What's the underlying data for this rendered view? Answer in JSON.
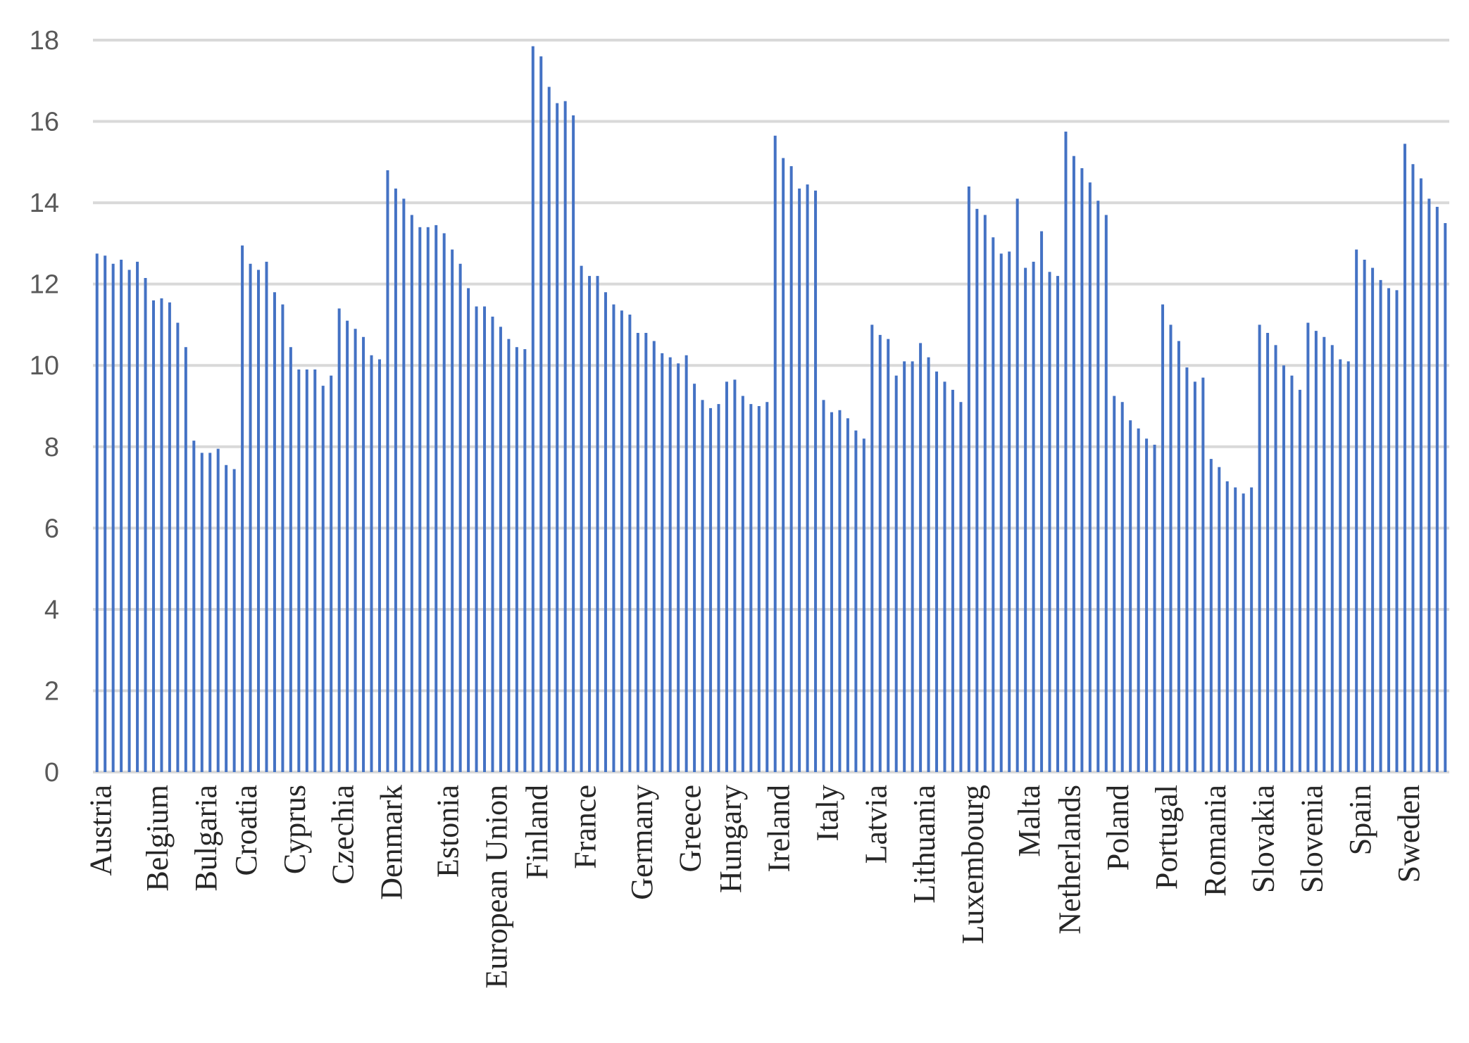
{
  "chart_data": {
    "type": "bar",
    "title": "",
    "xlabel": "",
    "ylabel": "",
    "ylim": [
      0,
      18
    ],
    "y_ticks": [
      0,
      2,
      4,
      6,
      8,
      10,
      12,
      14,
      16,
      18
    ],
    "grid": true,
    "legend": "none",
    "bar_color": "#4472c4",
    "grid_color": "#d9d9d9",
    "groups": [
      {
        "name": "Austria",
        "values": [
          12.75,
          12.7,
          12.5,
          12.6,
          12.35,
          12.55,
          12.15
        ]
      },
      {
        "name": "Belgium",
        "values": [
          11.6,
          11.65,
          11.55,
          11.05,
          10.45,
          8.15
        ]
      },
      {
        "name": "Bulgaria",
        "values": [
          7.85,
          7.85,
          7.95,
          7.55,
          7.45
        ]
      },
      {
        "name": "Croatia",
        "values": [
          12.95,
          12.5,
          12.35,
          12.55,
          11.8,
          11.5
        ]
      },
      {
        "name": "Cyprus",
        "values": [
          10.45,
          9.9,
          9.9,
          9.9,
          9.5,
          9.75
        ]
      },
      {
        "name": "Czechia",
        "values": [
          11.4,
          11.1,
          10.9,
          10.7,
          10.25,
          10.15
        ]
      },
      {
        "name": "Denmark",
        "values": [
          14.8,
          14.35,
          14.1,
          13.7,
          13.4,
          13.4,
          13.45
        ]
      },
      {
        "name": "Estonia",
        "values": [
          13.25,
          12.85,
          12.5,
          11.9,
          11.45,
          11.45
        ]
      },
      {
        "name": "European Union",
        "values": [
          11.2,
          10.95,
          10.65,
          10.45,
          10.4
        ]
      },
      {
        "name": "Finland",
        "values": [
          17.85,
          17.6,
          16.85,
          16.45,
          16.5,
          16.15
        ]
      },
      {
        "name": "France",
        "values": [
          12.45,
          12.2,
          12.2,
          11.8,
          11.5,
          11.35,
          11.25
        ]
      },
      {
        "name": "Germany",
        "values": [
          10.8,
          10.8,
          10.6,
          10.3,
          10.2,
          10.05
        ]
      },
      {
        "name": "Greece",
        "values": [
          10.25,
          9.55,
          9.15,
          8.95,
          9.05
        ]
      },
      {
        "name": "Hungary",
        "values": [
          9.6,
          9.65,
          9.25,
          9.05,
          9.0,
          9.1
        ]
      },
      {
        "name": "Ireland",
        "values": [
          15.65,
          15.1,
          14.9,
          14.35,
          14.45,
          14.3
        ]
      },
      {
        "name": "Italy",
        "values": [
          9.15,
          8.85,
          8.9,
          8.7,
          8.4,
          8.2
        ]
      },
      {
        "name": "Latvia",
        "values": [
          11.0,
          10.75,
          10.65,
          9.75,
          10.1,
          10.1
        ]
      },
      {
        "name": "Lithuania",
        "values": [
          10.55,
          10.2,
          9.85,
          9.6,
          9.4,
          9.1
        ]
      },
      {
        "name": "Luxembourg",
        "values": [
          14.4,
          13.85,
          13.7,
          13.15,
          12.75,
          12.8,
          14.1
        ]
      },
      {
        "name": "Malta",
        "values": [
          12.4,
          12.55,
          13.3,
          12.3,
          12.2
        ]
      },
      {
        "name": "Netherlands",
        "values": [
          15.75,
          15.15,
          14.85,
          14.5,
          14.05,
          13.7
        ]
      },
      {
        "name": "Poland",
        "values": [
          9.25,
          9.1,
          8.65,
          8.45,
          8.2,
          8.05
        ]
      },
      {
        "name": "Portugal",
        "values": [
          11.5,
          11.0,
          10.6,
          9.95,
          9.6,
          9.7
        ]
      },
      {
        "name": "Romania",
        "values": [
          7.7,
          7.5,
          7.15,
          7.0,
          6.85,
          7.0
        ]
      },
      {
        "name": "Slovakia",
        "values": [
          11.0,
          10.8,
          10.5,
          10.0,
          9.75,
          9.4
        ]
      },
      {
        "name": "Slovenia",
        "values": [
          11.05,
          10.85,
          10.7,
          10.5,
          10.15,
          10.1
        ]
      },
      {
        "name": "Spain",
        "values": [
          12.85,
          12.6,
          12.4,
          12.1,
          11.9,
          11.85
        ]
      },
      {
        "name": "Sweden",
        "values": [
          15.45,
          14.95,
          14.6,
          14.1,
          13.9,
          13.5
        ]
      }
    ]
  }
}
